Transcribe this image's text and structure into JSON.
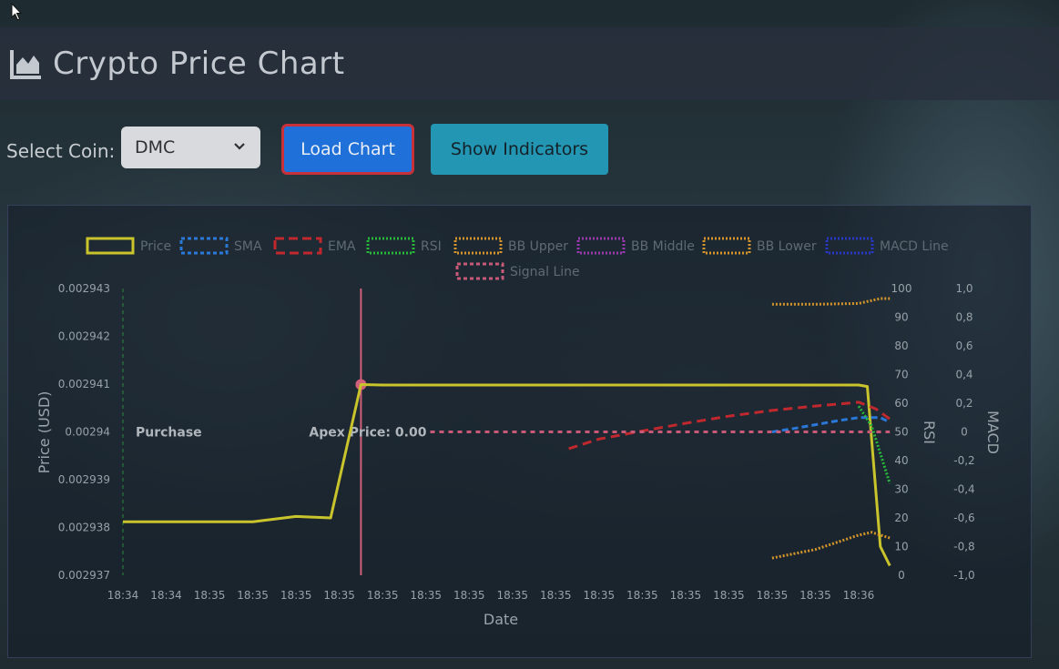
{
  "header": {
    "title": "Crypto Price Chart",
    "icon": "area-chart-icon"
  },
  "controls": {
    "coin_label": "Select Coin:",
    "coin_selected": "DMC",
    "load_label": "Load Chart",
    "indicators_label": "Show Indicators"
  },
  "colors": {
    "price": "#c9c42c",
    "sma": "#2a78d8",
    "ema": "#c0282e",
    "rsi": "#28b83a",
    "bb_upper": "#d4952a",
    "bb_middle": "#9a3ab0",
    "bb_lower": "#d4952a",
    "macd": "#2a38c8",
    "signal": "#c85a78",
    "annotation": "#d0607a"
  },
  "chart_data": {
    "type": "line",
    "x_labels": [
      "18:34",
      "18:34",
      "18:35",
      "18:35",
      "18:35",
      "18:35",
      "18:35",
      "18:35",
      "18:35",
      "18:35",
      "18:35",
      "18:35",
      "18:35",
      "18:35",
      "18:35",
      "18:35",
      "18:35",
      "18:36"
    ],
    "xlabel": "Date",
    "ylabel": "Price (USD)",
    "y2label": "RSI",
    "y3label": "MACD",
    "ylim": [
      0.002937,
      0.002943
    ],
    "yticks": [
      "0.002943",
      "0.002942",
      "0.002941",
      "0.00294",
      "0.002939",
      "0.002938",
      "0.002937"
    ],
    "rsi_lim": [
      0,
      100
    ],
    "rsi_ticks": [
      "100",
      "90",
      "80",
      "70",
      "60",
      "50",
      "40",
      "30",
      "20",
      "10",
      "0"
    ],
    "macd_lim": [
      -1.0,
      1.0
    ],
    "macd_ticks": [
      "1,0",
      "0,8",
      "0,6",
      "0,4",
      "0,2",
      "0",
      "-0,2",
      "-0,4",
      "-0,6",
      "-0,8",
      "-1,0"
    ],
    "legend": [
      "Price",
      "SMA",
      "EMA",
      "RSI",
      "BB Upper",
      "BB Middle",
      "BB Lower",
      "MACD Line",
      "Signal Line"
    ],
    "legend_position": "top",
    "series": [
      {
        "name": "Price",
        "axis": "price",
        "points": [
          [
            0,
            0.00293812
          ],
          [
            1,
            0.00293812
          ],
          [
            2,
            0.00293812
          ],
          [
            3,
            0.00293812
          ],
          [
            4,
            0.00293823
          ],
          [
            4.8,
            0.0029382
          ],
          [
            5.5,
            0.00294099
          ],
          [
            6,
            0.00294098
          ],
          [
            17,
            0.00294098
          ],
          [
            17.2,
            0.00294095
          ],
          [
            17.5,
            0.0029376
          ],
          [
            17.72,
            0.0029372
          ]
        ]
      },
      {
        "name": "SMA",
        "axis": "price",
        "points": [
          [
            15,
            0.00294
          ],
          [
            15.5,
            0.00294007
          ],
          [
            16,
            0.00294015
          ],
          [
            16.5,
            0.00294023
          ],
          [
            17,
            0.0029403
          ],
          [
            17.5,
            0.0029403
          ],
          [
            17.72,
            0.0029402
          ]
        ]
      },
      {
        "name": "EMA",
        "axis": "price",
        "points": [
          [
            10.3,
            0.00293965
          ],
          [
            11,
            0.00293985
          ],
          [
            12,
            0.00294002
          ],
          [
            13,
            0.00294018
          ],
          [
            14,
            0.00294033
          ],
          [
            15,
            0.00294045
          ],
          [
            16,
            0.00294054
          ],
          [
            17,
            0.00294062
          ],
          [
            17.4,
            0.00294048
          ],
          [
            17.72,
            0.00294027
          ]
        ]
      },
      {
        "name": "RSI",
        "axis": "rsi",
        "points": [
          [
            17,
            59
          ],
          [
            17.3,
            52
          ],
          [
            17.72,
            32
          ]
        ]
      },
      {
        "name": "BB Upper",
        "axis": "rsi",
        "points": [
          [
            15,
            94.5
          ],
          [
            16,
            94.5
          ],
          [
            17,
            94.8
          ],
          [
            17.5,
            96.5
          ],
          [
            17.72,
            96.5
          ]
        ]
      },
      {
        "name": "BB Lower",
        "axis": "rsi",
        "points": [
          [
            15,
            6
          ],
          [
            16,
            9
          ],
          [
            17,
            14
          ],
          [
            17.3,
            15
          ],
          [
            17.72,
            13
          ]
        ]
      },
      {
        "name": "Signal Line",
        "axis": "price",
        "points": [
          [
            7.1,
            0.00294
          ],
          [
            17.72,
            0.00294
          ]
        ]
      }
    ],
    "annotations": [
      {
        "label": "Purchase",
        "x": 0,
        "y": 0.00294
      },
      {
        "label": "Apex Price: 0.00",
        "x": 5.5,
        "y": 0.00294099
      }
    ]
  }
}
